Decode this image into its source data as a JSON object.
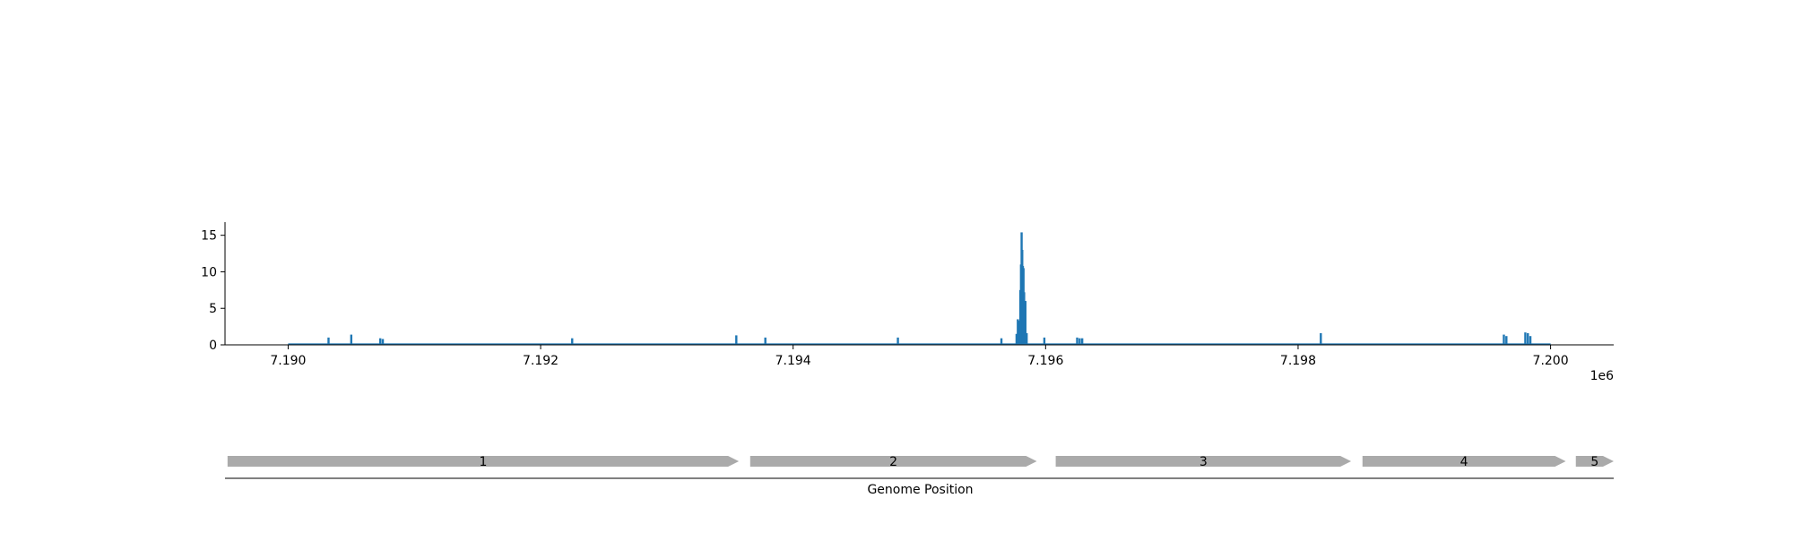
{
  "chart_data": [
    {
      "type": "bar",
      "title": "",
      "xlabel": "",
      "ylabel": "",
      "x_offset_label": "1e6",
      "xlim": [
        7189500,
        7200500
      ],
      "ylim": [
        0,
        16.8
      ],
      "x_ticks": [
        7190000,
        7192000,
        7194000,
        7196000,
        7198000,
        7200000
      ],
      "x_tick_labels": [
        "7.190",
        "7.192",
        "7.194",
        "7.196",
        "7.198",
        "7.200"
      ],
      "y_ticks": [
        0,
        5,
        10,
        15
      ],
      "y_tick_labels": [
        "0",
        "5",
        "10",
        "15"
      ],
      "bar_color": "#1f77b4",
      "baseline_range": [
        7190000,
        7200000
      ],
      "points": [
        {
          "x": 7190320,
          "y": 1.0
        },
        {
          "x": 7190500,
          "y": 1.4
        },
        {
          "x": 7190730,
          "y": 0.9
        },
        {
          "x": 7190750,
          "y": 0.8
        },
        {
          "x": 7192250,
          "y": 0.9
        },
        {
          "x": 7193550,
          "y": 1.3
        },
        {
          "x": 7193780,
          "y": 1.0
        },
        {
          "x": 7194830,
          "y": 1.0
        },
        {
          "x": 7195650,
          "y": 0.9
        },
        {
          "x": 7195770,
          "y": 1.5
        },
        {
          "x": 7195780,
          "y": 3.5
        },
        {
          "x": 7195790,
          "y": 3.3
        },
        {
          "x": 7195800,
          "y": 7.5
        },
        {
          "x": 7195805,
          "y": 11.0
        },
        {
          "x": 7195810,
          "y": 15.4
        },
        {
          "x": 7195815,
          "y": 13.0
        },
        {
          "x": 7195820,
          "y": 10.8
        },
        {
          "x": 7195825,
          "y": 10.5
        },
        {
          "x": 7195830,
          "y": 7.2
        },
        {
          "x": 7195835,
          "y": 6.0
        },
        {
          "x": 7195840,
          "y": 6.0
        },
        {
          "x": 7195850,
          "y": 1.6
        },
        {
          "x": 7195990,
          "y": 1.0
        },
        {
          "x": 7196250,
          "y": 1.0
        },
        {
          "x": 7196270,
          "y": 0.9
        },
        {
          "x": 7196290,
          "y": 0.9
        },
        {
          "x": 7198180,
          "y": 1.6
        },
        {
          "x": 7199630,
          "y": 1.4
        },
        {
          "x": 7199650,
          "y": 1.2
        },
        {
          "x": 7199800,
          "y": 1.7
        },
        {
          "x": 7199820,
          "y": 1.6
        },
        {
          "x": 7199840,
          "y": 1.2
        }
      ]
    },
    {
      "type": "gene-track",
      "xlabel": "Genome Position",
      "xlim": [
        7189500,
        7200500
      ],
      "feature_color": "#aaaaaa",
      "features": [
        {
          "label": "1",
          "start": 7189520,
          "end": 7193570
        },
        {
          "label": "2",
          "start": 7193660,
          "end": 7195930
        },
        {
          "label": "3",
          "start": 7196080,
          "end": 7198420
        },
        {
          "label": "4",
          "start": 7198510,
          "end": 7200120
        },
        {
          "label": "5",
          "start": 7200200,
          "end": 7200500
        }
      ]
    }
  ]
}
